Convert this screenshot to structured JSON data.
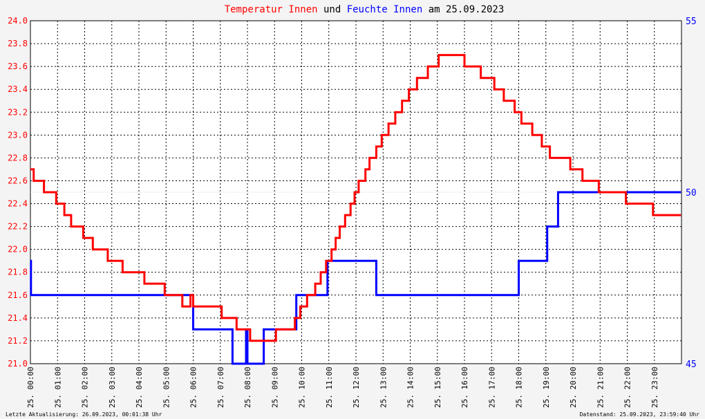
{
  "title": {
    "part1": "Temperatur Innen",
    "part2": " und ",
    "part3": "Feuchte Innen",
    "part4": " am 25.09.2023"
  },
  "footer": {
    "left": "Letzte Aktualisierung: 26.09.2023, 00:01:38 Uhr",
    "right": "Datenstand: 25.09.2023, 23:59:40 Uhr"
  },
  "colors": {
    "temperature": "#ff0000",
    "humidity": "#0000ff",
    "title_neutral": "#000000",
    "grid": "#000000",
    "background": "#ffffff"
  },
  "chart_data": {
    "type": "line",
    "title": "Temperatur Innen und Feuchte Innen am 25.09.2023",
    "grid": true,
    "x_axis": {
      "unit": "hours",
      "range": [
        0,
        24
      ],
      "tick_values": [
        0,
        1,
        2,
        3,
        4,
        5,
        6,
        7,
        8,
        9,
        10,
        11,
        12,
        13,
        14,
        15,
        16,
        17,
        18,
        19,
        20,
        21,
        22,
        23
      ],
      "tick_labels": [
        "25. 00:00",
        "25. 01:00",
        "25. 02:00",
        "25. 03:00",
        "25. 04:00",
        "25. 05:00",
        "25. 06:00",
        "25. 07:00",
        "25. 08:00",
        "25. 09:00",
        "25. 10:00",
        "25. 11:00",
        "25. 12:00",
        "25. 13:00",
        "25. 14:00",
        "25. 15:00",
        "25. 16:00",
        "25. 17:00",
        "25. 18:00",
        "25. 19:00",
        "25. 20:00",
        "25. 21:00",
        "25. 22:00",
        "25. 23:00"
      ]
    },
    "y_left": {
      "range": [
        21.0,
        24.0
      ],
      "ticks": [
        "21.0",
        "21.2",
        "21.4",
        "21.6",
        "21.8",
        "22.0",
        "22.2",
        "22.4",
        "22.6",
        "22.8",
        "23.0",
        "23.2",
        "23.4",
        "23.6",
        "23.8",
        "24.0"
      ]
    },
    "y_right": {
      "range": [
        45,
        55
      ],
      "ticks": [
        "45",
        "50",
        "55"
      ]
    },
    "series": [
      {
        "name": "Temperatur Innen",
        "axis": "left",
        "color": "#ff0000",
        "points": [
          [
            0,
            22.7
          ],
          [
            0.12,
            22.7
          ],
          [
            0.12,
            22.6
          ],
          [
            0.5,
            22.6
          ],
          [
            0.5,
            22.5
          ],
          [
            0.95,
            22.5
          ],
          [
            0.95,
            22.4
          ],
          [
            1.25,
            22.4
          ],
          [
            1.25,
            22.3
          ],
          [
            1.5,
            22.3
          ],
          [
            1.5,
            22.2
          ],
          [
            1.95,
            22.2
          ],
          [
            1.95,
            22.1
          ],
          [
            2.3,
            22.1
          ],
          [
            2.3,
            22.0
          ],
          [
            2.85,
            22.0
          ],
          [
            2.85,
            21.9
          ],
          [
            3.4,
            21.9
          ],
          [
            3.4,
            21.8
          ],
          [
            4.2,
            21.8
          ],
          [
            4.2,
            21.7
          ],
          [
            4.95,
            21.7
          ],
          [
            4.95,
            21.6
          ],
          [
            5.6,
            21.6
          ],
          [
            5.6,
            21.5
          ],
          [
            5.9,
            21.5
          ],
          [
            5.9,
            21.6
          ],
          [
            6.0,
            21.6
          ],
          [
            6.0,
            21.5
          ],
          [
            7.05,
            21.5
          ],
          [
            7.05,
            21.4
          ],
          [
            7.6,
            21.4
          ],
          [
            7.6,
            21.3
          ],
          [
            8.1,
            21.3
          ],
          [
            8.1,
            21.2
          ],
          [
            9.05,
            21.2
          ],
          [
            9.05,
            21.3
          ],
          [
            9.75,
            21.3
          ],
          [
            9.75,
            21.4
          ],
          [
            9.95,
            21.4
          ],
          [
            9.95,
            21.5
          ],
          [
            10.2,
            21.5
          ],
          [
            10.2,
            21.6
          ],
          [
            10.5,
            21.6
          ],
          [
            10.5,
            21.7
          ],
          [
            10.7,
            21.7
          ],
          [
            10.7,
            21.8
          ],
          [
            10.9,
            21.8
          ],
          [
            10.9,
            21.9
          ],
          [
            11.1,
            21.9
          ],
          [
            11.1,
            22.0
          ],
          [
            11.25,
            22.0
          ],
          [
            11.25,
            22.1
          ],
          [
            11.4,
            22.1
          ],
          [
            11.4,
            22.2
          ],
          [
            11.6,
            22.2
          ],
          [
            11.6,
            22.3
          ],
          [
            11.8,
            22.3
          ],
          [
            11.8,
            22.4
          ],
          [
            11.95,
            22.4
          ],
          [
            11.95,
            22.5
          ],
          [
            12.1,
            22.5
          ],
          [
            12.1,
            22.6
          ],
          [
            12.35,
            22.6
          ],
          [
            12.35,
            22.7
          ],
          [
            12.5,
            22.7
          ],
          [
            12.5,
            22.8
          ],
          [
            12.75,
            22.8
          ],
          [
            12.75,
            22.9
          ],
          [
            12.95,
            22.9
          ],
          [
            12.95,
            23.0
          ],
          [
            13.2,
            23.0
          ],
          [
            13.2,
            23.1
          ],
          [
            13.45,
            23.1
          ],
          [
            13.45,
            23.2
          ],
          [
            13.7,
            23.2
          ],
          [
            13.7,
            23.3
          ],
          [
            13.95,
            23.3
          ],
          [
            13.95,
            23.4
          ],
          [
            14.25,
            23.4
          ],
          [
            14.25,
            23.5
          ],
          [
            14.65,
            23.5
          ],
          [
            14.65,
            23.6
          ],
          [
            15.05,
            23.6
          ],
          [
            15.05,
            23.7
          ],
          [
            16.0,
            23.7
          ],
          [
            16.0,
            23.6
          ],
          [
            16.6,
            23.6
          ],
          [
            16.6,
            23.5
          ],
          [
            17.1,
            23.5
          ],
          [
            17.1,
            23.4
          ],
          [
            17.45,
            23.4
          ],
          [
            17.45,
            23.3
          ],
          [
            17.85,
            23.3
          ],
          [
            17.85,
            23.2
          ],
          [
            18.1,
            23.2
          ],
          [
            18.1,
            23.1
          ],
          [
            18.5,
            23.1
          ],
          [
            18.5,
            23.0
          ],
          [
            18.85,
            23.0
          ],
          [
            18.85,
            22.9
          ],
          [
            19.15,
            22.9
          ],
          [
            19.15,
            22.8
          ],
          [
            19.9,
            22.8
          ],
          [
            19.9,
            22.7
          ],
          [
            20.35,
            22.7
          ],
          [
            20.35,
            22.6
          ],
          [
            20.95,
            22.6
          ],
          [
            20.95,
            22.5
          ],
          [
            21.95,
            22.5
          ],
          [
            21.95,
            22.4
          ],
          [
            22.95,
            22.4
          ],
          [
            22.95,
            22.3
          ],
          [
            23.98,
            22.3
          ]
        ]
      },
      {
        "name": "Feuchte Innen",
        "axis": "right",
        "color": "#0000ff",
        "points": [
          [
            0,
            48
          ],
          [
            0.02,
            48
          ],
          [
            0.02,
            47
          ],
          [
            6.0,
            47
          ],
          [
            6.0,
            46
          ],
          [
            7.45,
            46
          ],
          [
            7.45,
            45
          ],
          [
            7.95,
            45
          ],
          [
            7.95,
            46
          ],
          [
            8.0,
            46
          ],
          [
            8.0,
            45
          ],
          [
            8.6,
            45
          ],
          [
            8.6,
            46
          ],
          [
            9.8,
            46
          ],
          [
            9.8,
            47
          ],
          [
            10.95,
            47
          ],
          [
            10.95,
            48
          ],
          [
            12.75,
            48
          ],
          [
            12.75,
            47
          ],
          [
            18.0,
            47
          ],
          [
            18.0,
            48
          ],
          [
            19.05,
            48
          ],
          [
            19.05,
            49
          ],
          [
            19.45,
            49
          ],
          [
            19.45,
            50
          ],
          [
            23.98,
            50
          ]
        ]
      }
    ]
  }
}
